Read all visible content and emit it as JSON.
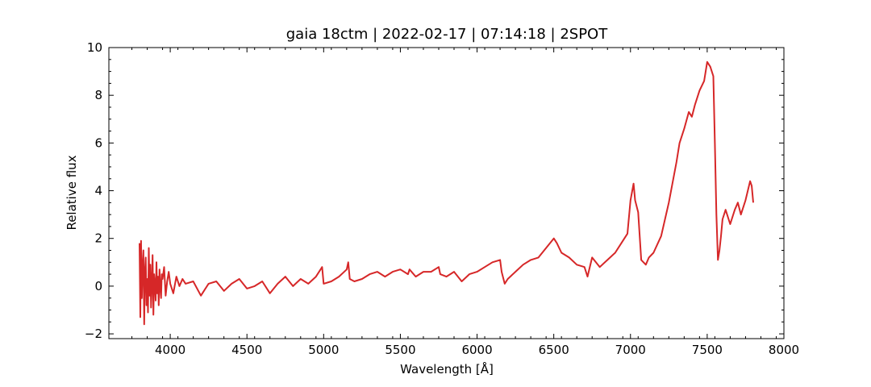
{
  "chart_data": {
    "type": "line",
    "title": "gaia 18ctm | 2022-02-17 | 07:14:18 | 2SPOT",
    "xlabel": "Wavelength [Å]",
    "ylabel": "Relative flux",
    "xlim": [
      3600,
      8000
    ],
    "ylim": [
      -2.2,
      10
    ],
    "xticks": [
      4000,
      4500,
      5000,
      5500,
      6000,
      6500,
      7000,
      7500,
      8000
    ],
    "xtick_labels": [
      "4000",
      "4500",
      "5000",
      "5500",
      "6000",
      "6500",
      "7000",
      "7500",
      "8000"
    ],
    "yticks": [
      -2,
      0,
      2,
      4,
      6,
      8,
      10
    ],
    "ytick_labels": [
      "−2",
      "0",
      "2",
      "4",
      "6",
      "8",
      "10"
    ],
    "series_color": "#d62728",
    "series": [
      {
        "x": [
          3800,
          3805,
          3810,
          3815,
          3820,
          3825,
          3830,
          3835,
          3840,
          3845,
          3850,
          3855,
          3860,
          3865,
          3870,
          3875,
          3880,
          3885,
          3890,
          3895,
          3900,
          3905,
          3910,
          3915,
          3920,
          3925,
          3930,
          3935,
          3940,
          3945,
          3950,
          3960,
          3970,
          3980,
          3990,
          4000,
          4020,
          4040,
          4060,
          4080,
          4100,
          4150,
          4200,
          4250,
          4300,
          4350,
          4400,
          4450,
          4500,
          4550,
          4600,
          4650,
          4700,
          4750,
          4800,
          4850,
          4900,
          4950,
          4980,
          4990,
          5000,
          5050,
          5100,
          5150,
          5160,
          5170,
          5200,
          5250,
          5300,
          5350,
          5400,
          5450,
          5500,
          5550,
          5560,
          5600,
          5650,
          5700,
          5750,
          5760,
          5800,
          5850,
          5900,
          5950,
          6000,
          6050,
          6100,
          6150,
          6160,
          6180,
          6200,
          6250,
          6300,
          6350,
          6400,
          6450,
          6500,
          6520,
          6550,
          6600,
          6650,
          6700,
          6720,
          6750,
          6800,
          6850,
          6900,
          6950,
          6980,
          7000,
          7020,
          7030,
          7050,
          7070,
          7100,
          7120,
          7150,
          7200,
          7250,
          7300,
          7320,
          7350,
          7380,
          7400,
          7420,
          7450,
          7480,
          7500,
          7520,
          7540,
          7550,
          7560,
          7570,
          7580,
          7590,
          7600,
          7620,
          7650,
          7680,
          7700,
          7720,
          7750,
          7780,
          7790,
          7800
        ],
        "y": [
          1.8,
          -1.3,
          1.9,
          -0.5,
          0.8,
          1.5,
          -1.6,
          0.6,
          1.2,
          -0.8,
          0.3,
          -1.1,
          1.6,
          -0.4,
          0.9,
          -0.9,
          0.2,
          1.3,
          -1.2,
          0.5,
          0.1,
          -0.6,
          1.0,
          -0.3,
          0.4,
          -0.8,
          0.7,
          0.0,
          -0.5,
          0.5,
          0.3,
          0.8,
          -0.4,
          0.2,
          0.6,
          0.1,
          -0.3,
          0.4,
          0.0,
          0.3,
          0.1,
          0.2,
          -0.4,
          0.1,
          0.2,
          -0.2,
          0.1,
          0.3,
          -0.1,
          0.0,
          0.2,
          -0.3,
          0.1,
          0.4,
          0.0,
          0.3,
          0.1,
          0.4,
          0.7,
          0.8,
          0.1,
          0.2,
          0.4,
          0.7,
          1.0,
          0.3,
          0.2,
          0.3,
          0.5,
          0.6,
          0.4,
          0.6,
          0.7,
          0.5,
          0.7,
          0.4,
          0.6,
          0.6,
          0.8,
          0.5,
          0.4,
          0.6,
          0.2,
          0.5,
          0.6,
          0.8,
          1.0,
          1.1,
          0.6,
          0.1,
          0.3,
          0.6,
          0.9,
          1.1,
          1.2,
          1.6,
          2.0,
          1.8,
          1.4,
          1.2,
          0.9,
          0.8,
          0.4,
          1.2,
          0.8,
          1.1,
          1.4,
          1.9,
          2.2,
          3.6,
          4.3,
          3.6,
          3.1,
          1.1,
          0.9,
          1.2,
          1.4,
          2.1,
          3.5,
          5.2,
          6.0,
          6.6,
          7.3,
          7.1,
          7.6,
          8.2,
          8.6,
          9.4,
          9.2,
          8.8,
          6.0,
          3.0,
          1.1,
          1.5,
          2.1,
          2.8,
          3.2,
          2.6,
          3.2,
          3.5,
          3.0,
          3.6,
          4.4,
          4.2,
          3.5
        ]
      }
    ]
  }
}
